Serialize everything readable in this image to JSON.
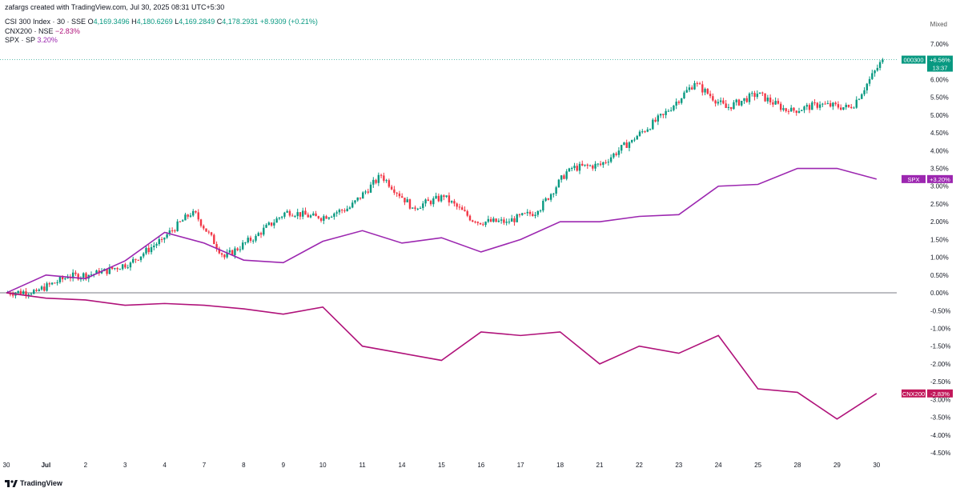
{
  "header": {
    "creator": "zafargs created with TradingView.com, Jul 30, 2025 08:31 UTC+5:30",
    "main_symbol": "CSI 300 Index · 30 · SSE",
    "ohlc": {
      "o_label": "O",
      "o": "4,169.3496",
      "h_label": "H",
      "h": "4,180.6269",
      "l_label": "L",
      "l": "4,169.2849",
      "c_label": "C",
      "c": "4,178.2931",
      "change": "+8.9309 (+0.21%)"
    },
    "compare": [
      {
        "name": "CNX200 · NSE",
        "value": "−2.83%"
      },
      {
        "name": "SPX · SP",
        "value": "3.20%"
      }
    ],
    "scale_mode": "Mixed"
  },
  "footer": {
    "brand": "TradingView"
  },
  "colors": {
    "up": "#089981",
    "down": "#f23645",
    "spx": "#9c27b0",
    "cnx": "#b0127a",
    "badge_main": "#089981",
    "badge_spx": "#9c27b0",
    "badge_cnx": "#c2185b"
  },
  "chart_data": {
    "type": "line",
    "y_unit": "%",
    "ylim": [
      -4.5,
      7.0
    ],
    "y_ticks": [
      "7.00%",
      "6.50%",
      "6.00%",
      "5.50%",
      "5.00%",
      "4.50%",
      "4.00%",
      "3.50%",
      "3.00%",
      "2.50%",
      "2.00%",
      "1.50%",
      "1.00%",
      "0.50%",
      "0.00%",
      "-0.50%",
      "-1.00%",
      "-1.50%",
      "-2.00%",
      "-2.50%",
      "-3.00%",
      "-3.50%",
      "-4.00%",
      "-4.50%"
    ],
    "x_ticks": [
      "30",
      "Jul",
      "2",
      "3",
      "4",
      "7",
      "8",
      "9",
      "10",
      "11",
      "14",
      "15",
      "16",
      "17",
      "18",
      "21",
      "22",
      "23",
      "24",
      "25",
      "28",
      "29",
      "30"
    ],
    "last_badges": [
      {
        "symbol": "000300",
        "value": "+6.56%",
        "countdown": "13:37"
      },
      {
        "symbol": "SPX",
        "value": "+3.20%"
      },
      {
        "symbol": "CNX200",
        "value": "-2.83%"
      }
    ],
    "csi300_daily_close_pct": [
      0.05,
      0.45,
      0.55,
      0.85,
      1.5,
      2.3,
      1.0,
      1.6,
      2.3,
      2.1,
      2.4,
      3.3,
      2.4,
      2.7,
      2.0,
      2.0,
      2.3,
      3.5,
      3.6,
      4.3,
      5.0,
      5.9,
      5.2,
      5.6,
      5.1,
      5.3,
      5.2,
      6.56
    ],
    "series": [
      {
        "name": "SPX",
        "x": [
          "30",
          "Jul",
          "2",
          "3",
          "4",
          "7",
          "8",
          "9",
          "10",
          "11",
          "14",
          "15",
          "16",
          "17",
          "18",
          "21",
          "22",
          "23",
          "24",
          "25",
          "28",
          "29",
          "30"
        ],
        "values": [
          0.0,
          0.5,
          0.4,
          0.9,
          1.7,
          1.4,
          0.92,
          0.85,
          1.45,
          1.75,
          1.4,
          1.55,
          1.15,
          1.5,
          2.0,
          2.0,
          2.15,
          2.2,
          3.0,
          3.05,
          3.5,
          3.5,
          3.2
        ]
      },
      {
        "name": "CNX200",
        "x": [
          "30",
          "Jul",
          "2",
          "3",
          "4",
          "7",
          "8",
          "9",
          "10",
          "11",
          "14",
          "15",
          "16",
          "17",
          "18",
          "21",
          "22",
          "23",
          "24",
          "25",
          "28",
          "29",
          "30"
        ],
        "values": [
          0.0,
          -0.15,
          -0.2,
          -0.35,
          -0.3,
          -0.35,
          -0.45,
          -0.6,
          -0.4,
          -1.5,
          -1.7,
          -1.9,
          -1.1,
          -1.2,
          -1.1,
          -2.0,
          -1.5,
          -1.7,
          -1.2,
          -2.7,
          -2.8,
          -3.55,
          -2.83
        ]
      }
    ]
  }
}
